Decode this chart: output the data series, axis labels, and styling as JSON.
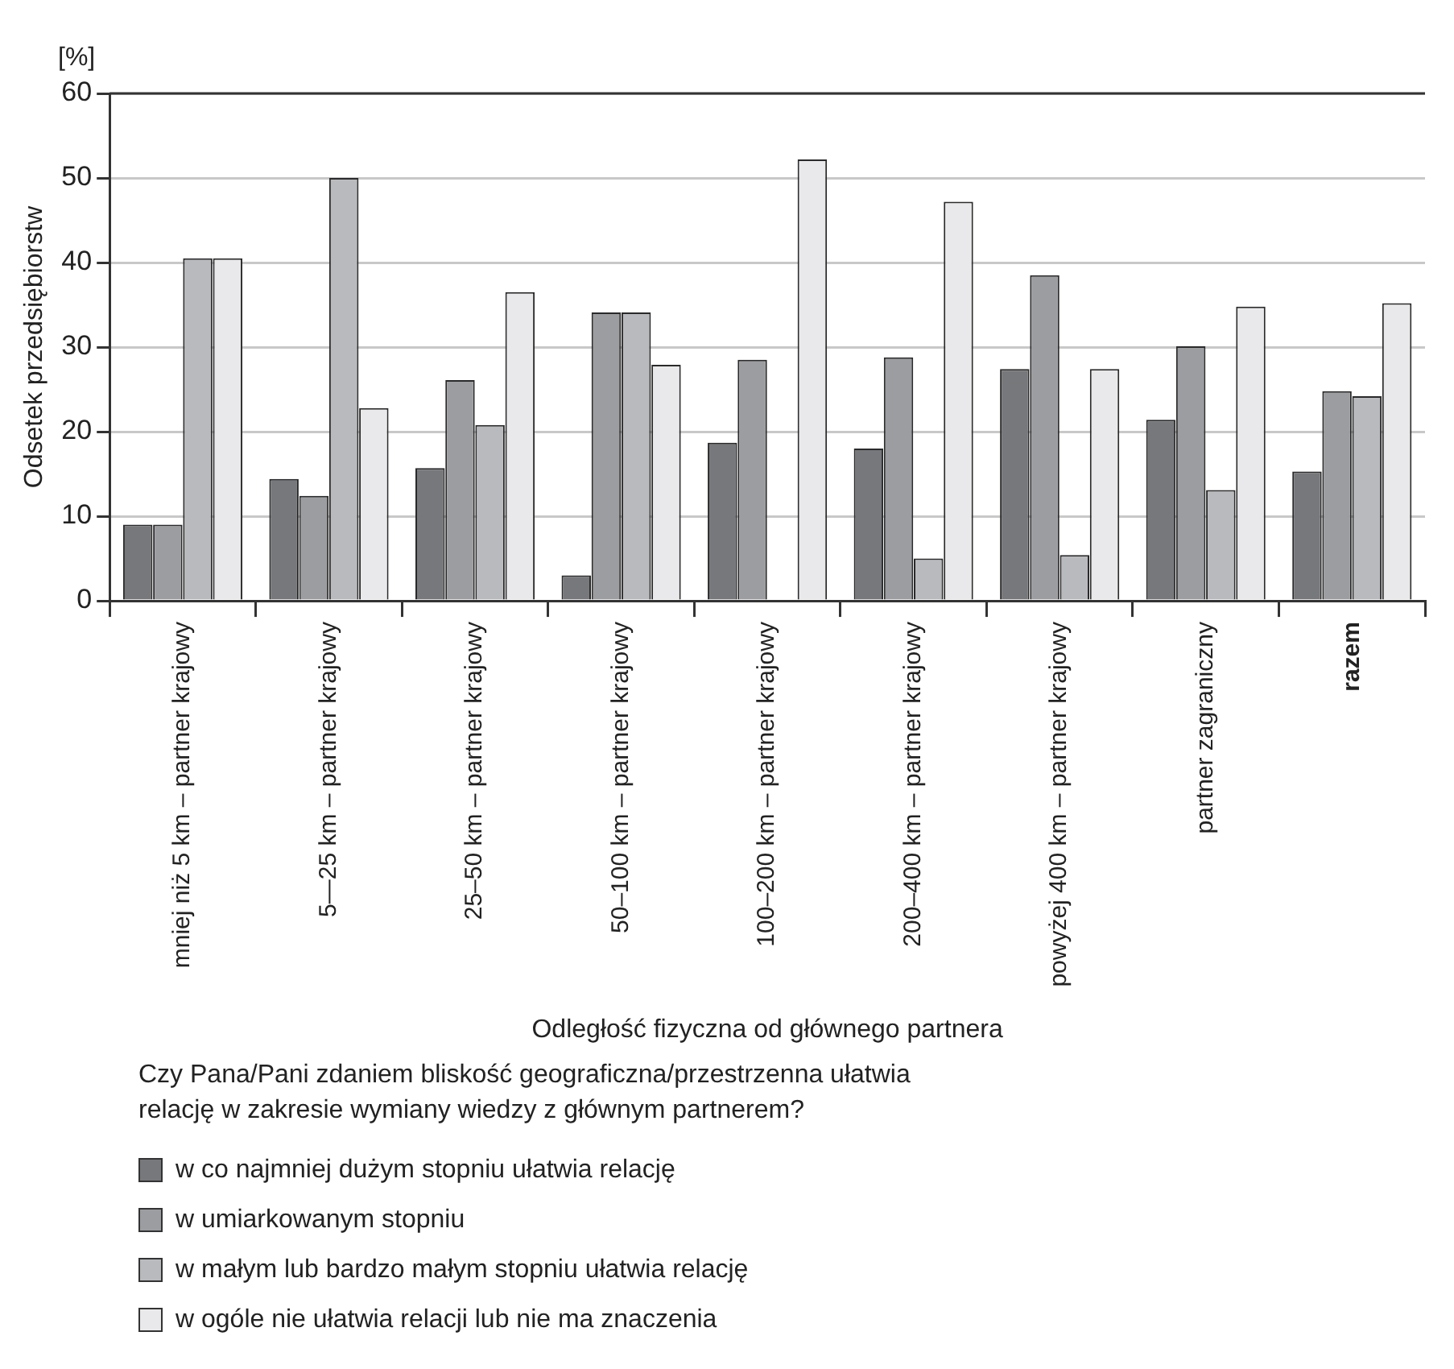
{
  "chart_data": {
    "type": "bar",
    "xlabel": "Odległość fizyczna od głównego partnera",
    "ylabel": "Odsetek przedsiębiorstw",
    "annotations": [
      "[%]"
    ],
    "legend_title": "Czy Pana/Pani zdaniem bliskość geograficzna/przestrzenna ułatwia relację w zakresie wymiany wiedzy z głównym partnerem?",
    "categories": [
      "mniej niż 5 km – partner krajowy",
      "5—25 km – partner krajowy",
      "25–50 km – partner krajowy",
      "50–100 km – partner krajowy",
      "100–200 km – partner krajowy",
      "200–400 km – partner krajowy",
      "powyżej 400 km – partner krajowy",
      "partner zagraniczny",
      "razem"
    ],
    "series": [
      {
        "name": "w co najmniej dużym stopniu ułatwia relację",
        "color": "#77787c",
        "values": [
          9,
          14.4,
          15.7,
          3,
          18.7,
          18,
          27.4,
          21.4,
          15.3
        ]
      },
      {
        "name": "w umiarkowanym stopniu",
        "color": "#9c9da1",
        "values": [
          9,
          12.4,
          26.1,
          34.1,
          28.5,
          28.8,
          38.5,
          30.1,
          24.8
        ]
      },
      {
        "name": "w małym lub bardzo małym stopniu ułatwia relację",
        "color": "#b9babe",
        "values": [
          40.5,
          50,
          20.8,
          34.1,
          null,
          5,
          5.4,
          13.1,
          24.2
        ]
      },
      {
        "name": "w ogóle nie ułatwia relacji lub nie ma znaczenia",
        "color": "#e9e9eb",
        "values": [
          40.5,
          22.8,
          36.5,
          27.9,
          52.2,
          47.2,
          27.4,
          34.8,
          35.2
        ]
      }
    ],
    "ylim": [
      0,
      60
    ],
    "yticks": [
      0,
      10,
      20,
      30,
      40,
      50,
      60
    ],
    "grid": "y",
    "legend": "bottom"
  }
}
